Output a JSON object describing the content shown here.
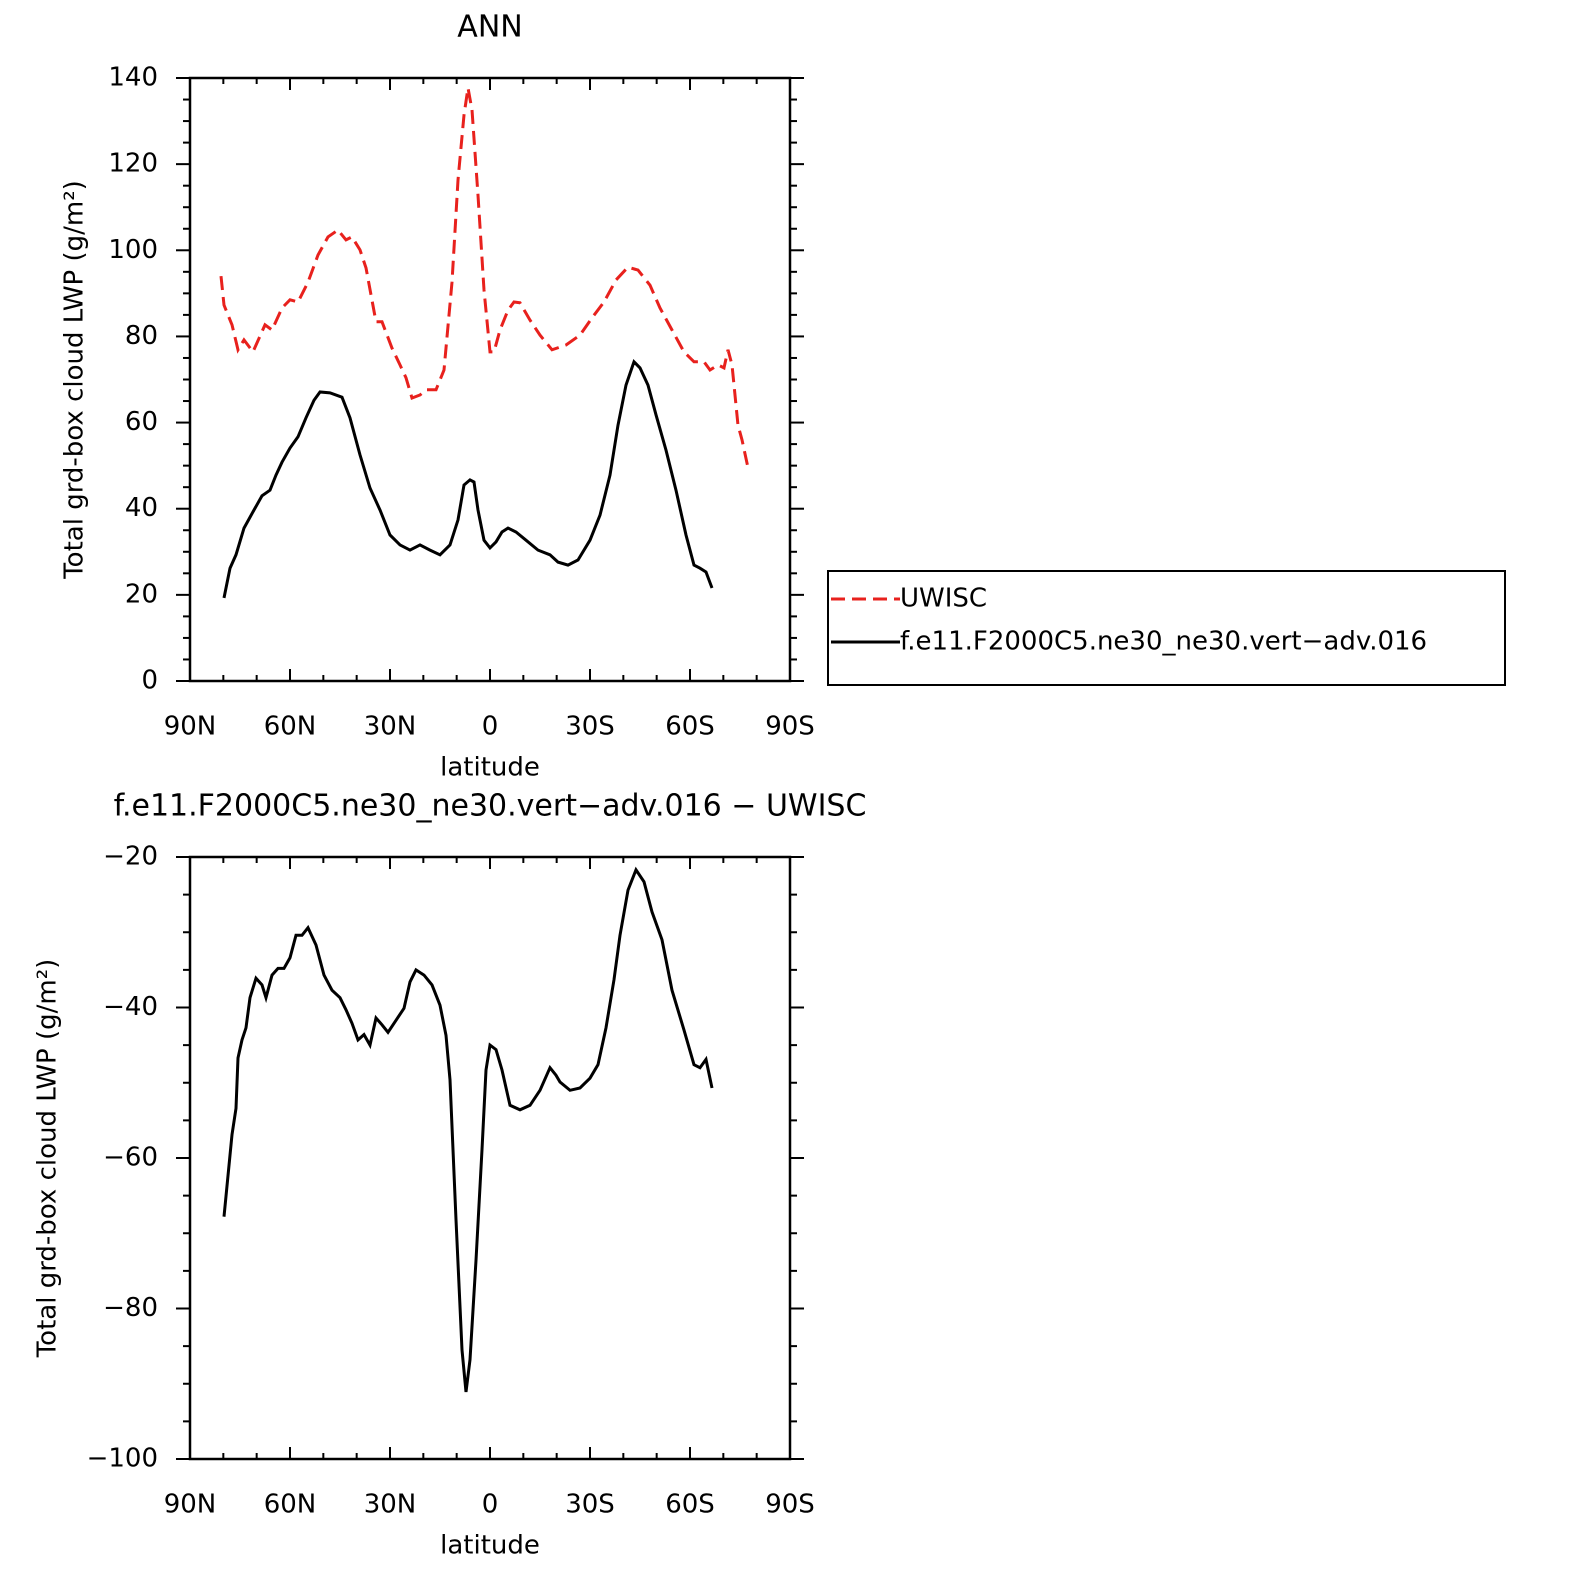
{
  "chart_data": [
    {
      "type": "line",
      "title": "ANN",
      "xlabel": "latitude",
      "ylabel": "Total grd-box cloud LWP (g/m²)",
      "xlim": [
        90,
        -90
      ],
      "xticks": [
        {
          "value": 90,
          "label": "90N"
        },
        {
          "value": 60,
          "label": "60N"
        },
        {
          "value": 30,
          "label": "30N"
        },
        0,
        {
          "value": -30,
          "label": "30S"
        },
        {
          "value": -60,
          "label": "60S"
        },
        {
          "value": -90,
          "label": "90S"
        }
      ],
      "xminorticks": [
        80,
        70,
        50,
        40,
        20,
        10,
        -10,
        -20,
        -40,
        -50,
        -70,
        -80
      ],
      "ylim": [
        0,
        140
      ],
      "yticks": [
        0,
        20,
        40,
        60,
        80,
        100,
        120,
        140
      ],
      "yminorticks": [
        5,
        10,
        15,
        25,
        30,
        35,
        45,
        50,
        55,
        65,
        70,
        75,
        85,
        90,
        95,
        105,
        110,
        115,
        125,
        130,
        135
      ],
      "legend": "right",
      "series": [
        {
          "name": "UWISC",
          "color": "#e8211d",
          "line_style": "dashed",
          "x": [
            80.7,
            79.8,
            77.4,
            75.6,
            73.8,
            71.1,
            67.5,
            65.4,
            62.4,
            60,
            57.6,
            54.6,
            51.6,
            48.6,
            45.6,
            43.2,
            41.4,
            39,
            37.2,
            34.2,
            32.4,
            29.4,
            27,
            25.2,
            23.4,
            21,
            19.2,
            16.2,
            13.8,
            11.4,
            9.6,
            7.8,
            6.6,
            5.4,
            3.6,
            1.8,
            0,
            -1.2,
            -3,
            -5.4,
            -7.2,
            -9,
            -12,
            -15,
            -18.6,
            -22.8,
            -27,
            -30.6,
            -34.2,
            -37.8,
            -41.4,
            -44.4,
            -48,
            -51,
            -54.6,
            -58.2,
            -61.2,
            -64.2,
            -66,
            -68.4,
            -70.2,
            -71.4,
            -72.6,
            -74.4,
            -75.6,
            -77.4
          ],
          "values": [
            94,
            87.3,
            82.7,
            76.9,
            79.2,
            76.4,
            82.7,
            81.5,
            86.6,
            88.5,
            88,
            92.6,
            98.9,
            103.1,
            104.7,
            102.4,
            103.1,
            100.1,
            95.9,
            83.4,
            83.4,
            77.3,
            73.4,
            70.4,
            65.7,
            66.4,
            67.6,
            67.6,
            72.2,
            92.6,
            116.3,
            131.4,
            137.7,
            132.6,
            112.8,
            90.8,
            76.4,
            76.4,
            81.5,
            86.1,
            88,
            87.8,
            83.8,
            80.3,
            76.9,
            78,
            80.3,
            84.3,
            88,
            93.1,
            96.1,
            95.4,
            91.9,
            86.6,
            81.5,
            76.4,
            74.1,
            74.1,
            72.2,
            73.4,
            72.7,
            76.9,
            73.4,
            59.4,
            56,
            49.5
          ]
        },
        {
          "name": "f.e11.F2000C5.ne30_ne30.vert−adv.016",
          "color": "#000000",
          "line_style": "solid",
          "x": [
            79.8,
            78,
            76.2,
            73.8,
            70.8,
            68.4,
            66,
            64.2,
            62.4,
            60,
            57.6,
            55.2,
            52.8,
            51,
            48,
            44.4,
            42,
            39,
            36,
            33,
            30,
            27,
            24,
            21,
            18,
            15,
            12,
            9.6,
            7.8,
            6,
            4.8,
            3.6,
            1.8,
            0,
            -1.8,
            -3.6,
            -5.4,
            -7.8,
            -10.8,
            -14.4,
            -18,
            -20.4,
            -23.4,
            -26.4,
            -30,
            -33,
            -36,
            -38.4,
            -40.8,
            -43.2,
            -45,
            -47.4,
            -49.8,
            -52.8,
            -55.8,
            -58.8,
            -61.2,
            -63,
            -64.8,
            -66.6
          ],
          "values": [
            19.3,
            26.2,
            29.3,
            35.5,
            39.7,
            43,
            44.3,
            47.8,
            50.8,
            54.1,
            56.7,
            61.1,
            65.2,
            67.1,
            66.9,
            65.9,
            61.1,
            52.5,
            44.8,
            39.7,
            33.9,
            31.6,
            30.4,
            31.6,
            30.4,
            29.3,
            31.6,
            37.4,
            45.5,
            46.7,
            46.2,
            39.7,
            32.7,
            30.9,
            32.3,
            34.6,
            35.5,
            34.6,
            32.7,
            30.4,
            29.3,
            27.6,
            26.9,
            28.1,
            32.7,
            38.5,
            47.8,
            59.4,
            68.7,
            74.1,
            72.7,
            68.7,
            61.8,
            53.6,
            44.3,
            33.9,
            26.9,
            26.2,
            25.3,
            21.6
          ]
        }
      ]
    },
    {
      "type": "line",
      "title": "f.e11.F2000C5.ne30_ne30.vert−adv.016 − UWISC",
      "xlabel": "latitude",
      "ylabel": "Total grd-box cloud LWP (g/m²)",
      "xlim": [
        90,
        -90
      ],
      "xticks": [
        {
          "value": 90,
          "label": "90N"
        },
        {
          "value": 60,
          "label": "60N"
        },
        {
          "value": 30,
          "label": "30N"
        },
        0,
        {
          "value": -30,
          "label": "30S"
        },
        {
          "value": -60,
          "label": "60S"
        },
        {
          "value": -90,
          "label": "90S"
        }
      ],
      "xminorticks": [
        80,
        70,
        50,
        40,
        20,
        10,
        -10,
        -20,
        -40,
        -50,
        -70,
        -80
      ],
      "ylim": [
        -100,
        -20
      ],
      "yticks": [
        {
          "value": -100,
          "label": "−100"
        },
        {
          "value": -80,
          "label": "−80"
        },
        {
          "value": -60,
          "label": "−60"
        },
        {
          "value": -40,
          "label": "−40"
        },
        {
          "value": -20,
          "label": "−20"
        }
      ],
      "yminorticks": [
        -25,
        -30,
        -35,
        -45,
        -50,
        -55,
        -65,
        -70,
        -75,
        -85,
        -90,
        -95
      ],
      "series": [
        {
          "color": "#000000",
          "line_style": "solid",
          "x": [
            79.8,
            77.4,
            76.2,
            75.6,
            74.4,
            73.2,
            72,
            70.2,
            68.4,
            67.2,
            65.4,
            63.6,
            61.8,
            60,
            58.2,
            56.4,
            54.6,
            52.2,
            49.8,
            47.4,
            45,
            43.2,
            41.4,
            39.6,
            37.8,
            36,
            34.2,
            32.4,
            30.6,
            28.2,
            25.8,
            24,
            22.2,
            19.8,
            17.4,
            15,
            13.2,
            12,
            10.2,
            8.4,
            7.2,
            6,
            4.2,
            2.4,
            1.2,
            0,
            -1.8,
            -3.6,
            -6,
            -9,
            -12,
            -15,
            -18,
            -19.8,
            -21,
            -24,
            -27,
            -30,
            -32.4,
            -34.8,
            -37.2,
            -39,
            -41.4,
            -43.8,
            -46.2,
            -48.6,
            -51.6,
            -54.6,
            -58.2,
            -61.2,
            -63,
            -64.8,
            -66.6
          ],
          "values": [
            -67.8,
            -56.9,
            -53.4,
            -46.7,
            -44.3,
            -42.7,
            -38.7,
            -36.1,
            -37,
            -38.7,
            -35.7,
            -34.8,
            -34.8,
            -33.4,
            -30.4,
            -30.4,
            -29.4,
            -31.7,
            -35.7,
            -37.7,
            -38.7,
            -40.3,
            -42.1,
            -44.3,
            -43.6,
            -45,
            -41.4,
            -42.3,
            -43.3,
            -41.7,
            -40.1,
            -36.6,
            -35,
            -35.7,
            -37,
            -39.7,
            -43.7,
            -49.6,
            -68.2,
            -85.5,
            -91.1,
            -86.8,
            -73.6,
            -58.9,
            -48.3,
            -45,
            -45.6,
            -48.3,
            -53,
            -53.6,
            -53,
            -51,
            -48,
            -49,
            -49.9,
            -51,
            -50.7,
            -49.4,
            -47.6,
            -42.7,
            -36.3,
            -30.4,
            -24.4,
            -21.7,
            -23.3,
            -27.3,
            -31,
            -37.7,
            -43,
            -47.6,
            -48,
            -46.9,
            -50.7
          ]
        }
      ]
    }
  ]
}
